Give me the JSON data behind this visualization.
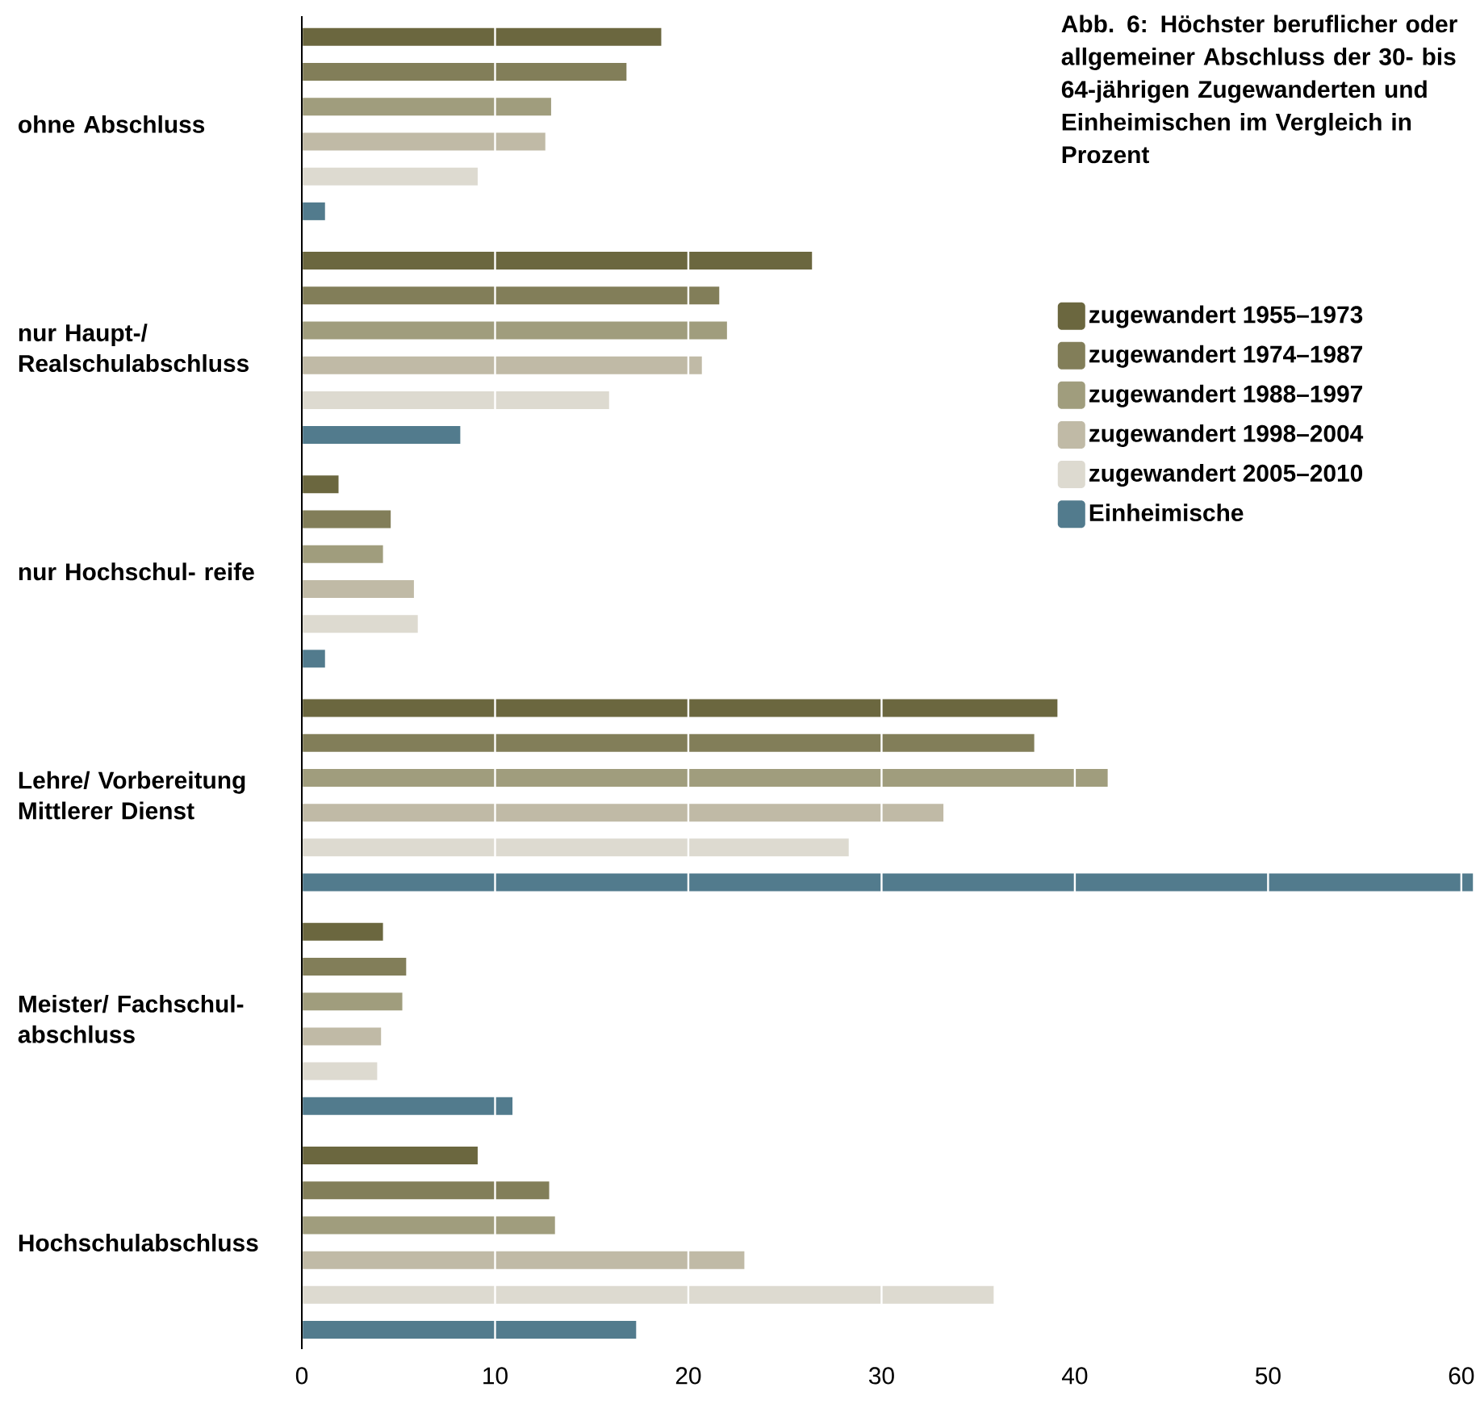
{
  "chart_data": {
    "type": "bar",
    "orientation": "horizontal",
    "title": "Abb. 6: Höchster beruflicher oder allgemeiner Abschluss der 30- bis 64-jährigen Zugewanderten und Einheimischen im Vergleich in Prozent",
    "categories": [
      "ohne Abschluss",
      "nur Haupt-/ Realschulabschluss",
      "nur Hochschul- reife",
      "Lehre/ Vorbereitung Mittlerer Dienst",
      "Meister/ Fachschul- abschluss",
      "Hochschulabschluss"
    ],
    "series": [
      {
        "name": "zugewandert 1955–1973",
        "color": "#6b673f",
        "values": [
          18.6,
          26.4,
          1.9,
          39.1,
          4.2,
          9.1
        ]
      },
      {
        "name": "zugewandert 1974–1987",
        "color": "#827e59",
        "values": [
          16.8,
          21.6,
          4.6,
          37.9,
          5.4,
          12.8
        ]
      },
      {
        "name": "zugewandert 1988–1997",
        "color": "#a09d7d",
        "values": [
          12.9,
          22.0,
          4.2,
          41.7,
          5.2,
          13.1
        ]
      },
      {
        "name": "zugewandert 1998–2004",
        "color": "#c0baa6",
        "values": [
          12.6,
          20.7,
          5.8,
          33.2,
          4.1,
          22.9
        ]
      },
      {
        "name": "zugewandert 2005–2010",
        "color": "#dddad0",
        "values": [
          9.1,
          15.9,
          6.0,
          28.3,
          3.9,
          35.8
        ]
      },
      {
        "name": "Einheimische",
        "color": "#527b8d",
        "values": [
          1.2,
          8.2,
          1.2,
          60.6,
          10.9,
          17.3
        ]
      }
    ],
    "xlim": [
      0,
      60.8
    ],
    "xticks": [
      0,
      10,
      20,
      30,
      40,
      50,
      60
    ],
    "grid": "x",
    "legend": "top right"
  }
}
